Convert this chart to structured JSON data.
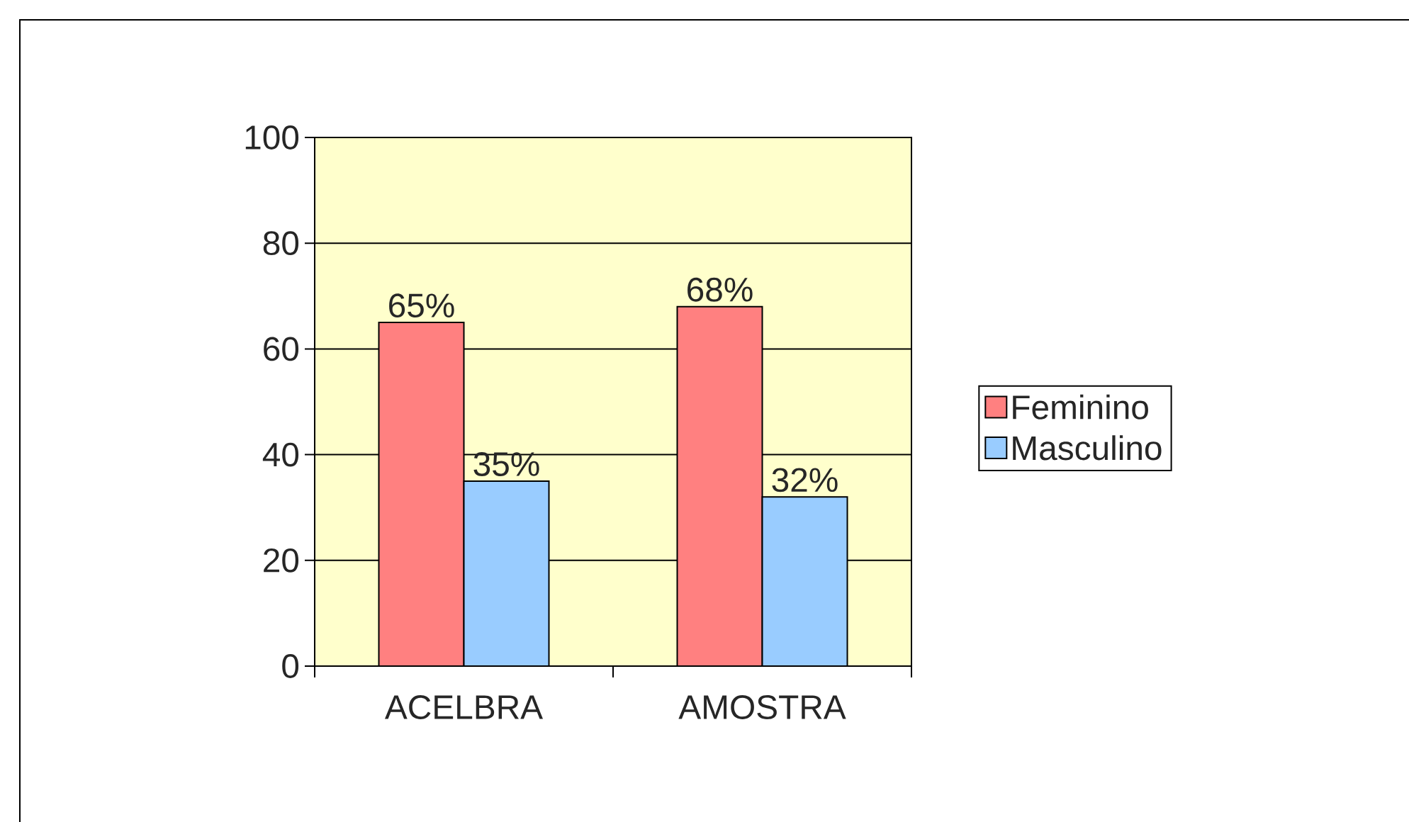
{
  "chart_data": {
    "type": "bar",
    "categories": [
      "ACELBRA",
      "AMOSTRA"
    ],
    "series": [
      {
        "name": "Feminino",
        "color": "#ff8080",
        "values": [
          65,
          68
        ],
        "value_labels": [
          "65%",
          "68%"
        ]
      },
      {
        "name": "Masculino",
        "color": "#99ccff",
        "values": [
          35,
          32
        ],
        "value_labels": [
          "35%",
          "32%"
        ]
      }
    ],
    "ylim": [
      0,
      100
    ],
    "yticks": [
      0,
      20,
      40,
      60,
      80,
      100
    ],
    "grid": "y",
    "legend": "right"
  }
}
